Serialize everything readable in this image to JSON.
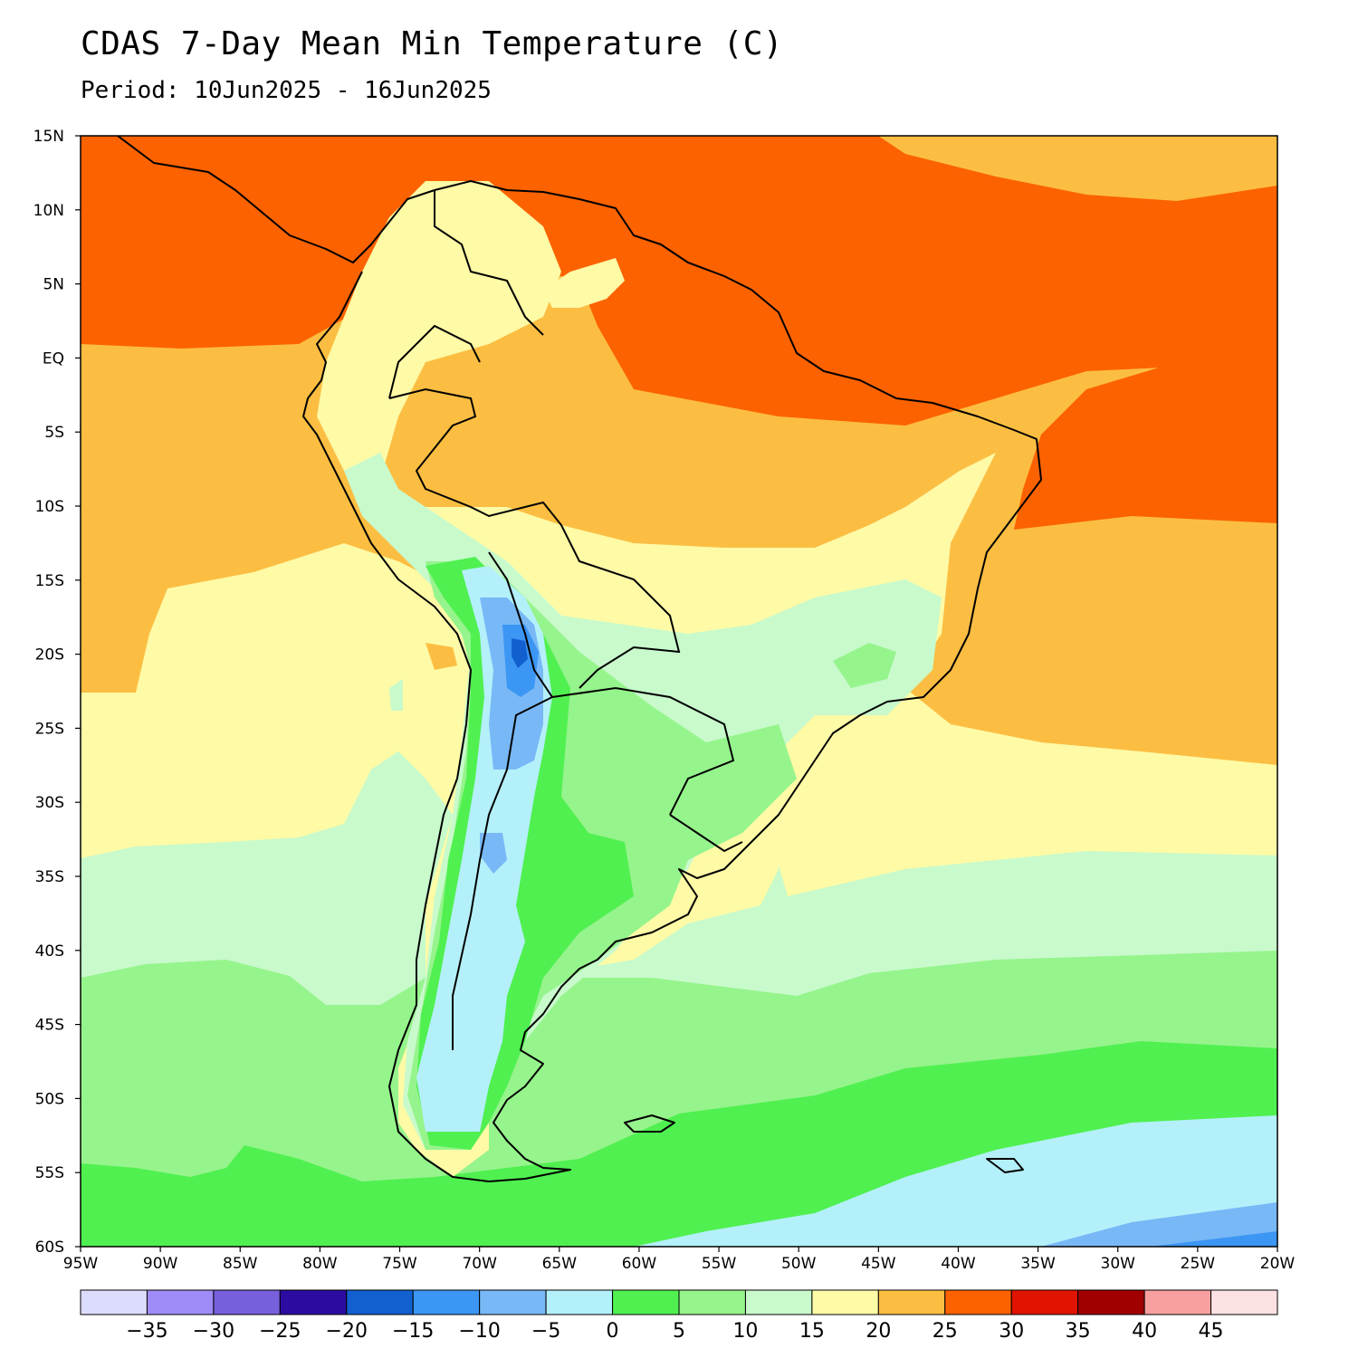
{
  "header": {
    "title": "CDAS 7-Day Mean Min Temperature (C)",
    "period": "Period: 10Jun2025 - 16Jun2025"
  },
  "map": {
    "lon_range": [
      -95,
      -20
    ],
    "lat_range": [
      -60,
      15
    ],
    "lat_ticks": [
      {
        "value": 15,
        "label": "15N"
      },
      {
        "value": 10,
        "label": "10N"
      },
      {
        "value": 5,
        "label": "5N"
      },
      {
        "value": 0,
        "label": "EQ"
      },
      {
        "value": -5,
        "label": "5S"
      },
      {
        "value": -10,
        "label": "10S"
      },
      {
        "value": -15,
        "label": "15S"
      },
      {
        "value": -20,
        "label": "20S"
      },
      {
        "value": -25,
        "label": "25S"
      },
      {
        "value": -30,
        "label": "30S"
      },
      {
        "value": -35,
        "label": "35S"
      },
      {
        "value": -40,
        "label": "40S"
      },
      {
        "value": -45,
        "label": "45S"
      },
      {
        "value": -50,
        "label": "50S"
      },
      {
        "value": -55,
        "label": "55S"
      },
      {
        "value": -60,
        "label": "60S"
      }
    ],
    "lon_ticks": [
      {
        "value": -95,
        "label": "95W"
      },
      {
        "value": -90,
        "label": "90W"
      },
      {
        "value": -85,
        "label": "85W"
      },
      {
        "value": -80,
        "label": "80W"
      },
      {
        "value": -75,
        "label": "75W"
      },
      {
        "value": -70,
        "label": "70W"
      },
      {
        "value": -65,
        "label": "65W"
      },
      {
        "value": -60,
        "label": "60W"
      },
      {
        "value": -55,
        "label": "55W"
      },
      {
        "value": -50,
        "label": "50W"
      },
      {
        "value": -45,
        "label": "45W"
      },
      {
        "value": -40,
        "label": "40W"
      },
      {
        "value": -35,
        "label": "35W"
      },
      {
        "value": -30,
        "label": "30W"
      },
      {
        "value": -25,
        "label": "25W"
      },
      {
        "value": -20,
        "label": "20W"
      }
    ]
  },
  "colorbar": {
    "colors": [
      "#dcdcfc",
      "#a08cf8",
      "#7860dc",
      "#2c0ca0",
      "#1260d0",
      "#3c96f4",
      "#78b8f6",
      "#b4f0fa",
      "#50f050",
      "#96f48c",
      "#c8facc",
      "#fefaa6",
      "#fcbe42",
      "#fc6200",
      "#e01400",
      "#a00000",
      "#f8a0a0",
      "#fce2e2"
    ],
    "labels": [
      "-35",
      "-30",
      "-25",
      "-20",
      "-15",
      "-10",
      "-5",
      "0",
      "5",
      "10",
      "15",
      "20",
      "25",
      "30",
      "35",
      "40",
      "45"
    ]
  }
}
